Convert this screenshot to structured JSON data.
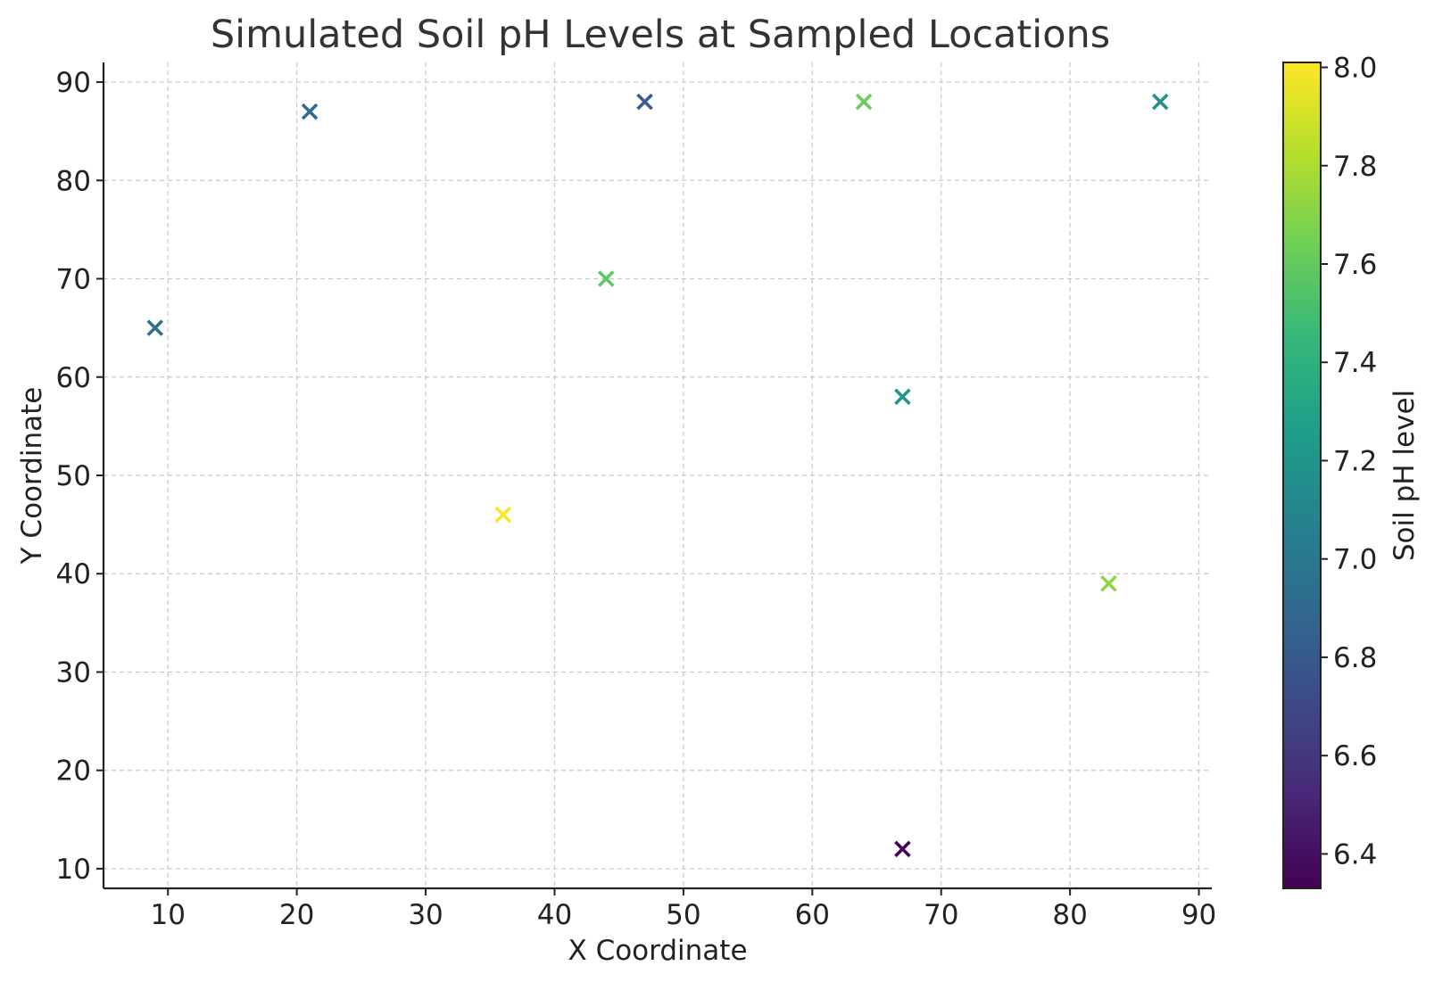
{
  "chart_data": {
    "type": "scatter",
    "title": "Simulated Soil pH Levels at Sampled Locations",
    "xlabel": "X Coordinate",
    "ylabel": "Y Coordinate",
    "xlim": [
      5,
      91
    ],
    "ylim": [
      8,
      92
    ],
    "xticks": [
      10,
      20,
      30,
      40,
      50,
      60,
      70,
      80,
      90
    ],
    "yticks": [
      10,
      20,
      30,
      40,
      50,
      60,
      70,
      80,
      90
    ],
    "grid": true,
    "marker": "x",
    "colormap": "viridis",
    "colorbar": {
      "label": "Soil pH level",
      "range": [
        6.33,
        8.01
      ],
      "ticks": [
        "6.4",
        "6.6",
        "6.8",
        "7.0",
        "7.2",
        "7.4",
        "7.6",
        "7.8",
        "8.0"
      ],
      "colors": [
        "#440154",
        "#482878",
        "#3e4989",
        "#31688e",
        "#26828e",
        "#1f9e89",
        "#35b779",
        "#6ece58",
        "#b5de2b",
        "#fde725"
      ]
    },
    "points": [
      {
        "x": 21,
        "y": 87,
        "ph": 6.92
      },
      {
        "x": 47,
        "y": 88,
        "ph": 6.83
      },
      {
        "x": 64,
        "y": 88,
        "ph": 7.62
      },
      {
        "x": 87,
        "y": 88,
        "ph": 7.18
      },
      {
        "x": 9,
        "y": 65,
        "ph": 6.95
      },
      {
        "x": 44,
        "y": 70,
        "ph": 7.58
      },
      {
        "x": 67,
        "y": 58,
        "ph": 7.22
      },
      {
        "x": 36,
        "y": 46,
        "ph": 8.0
      },
      {
        "x": 83,
        "y": 39,
        "ph": 7.72
      },
      {
        "x": 67,
        "y": 12,
        "ph": 6.34
      }
    ]
  }
}
